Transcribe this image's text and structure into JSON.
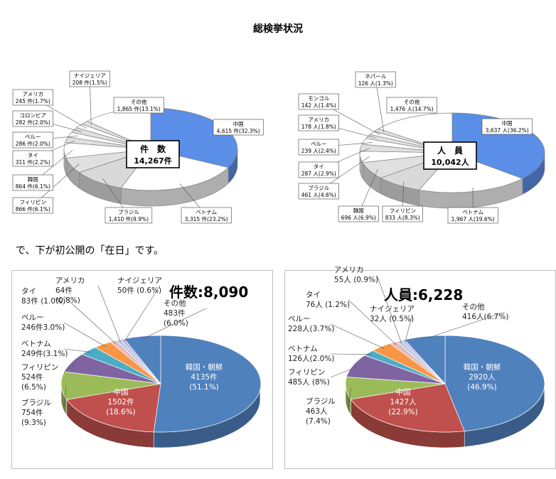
{
  "page": {
    "title": "総検挙状況",
    "caption": "で、下が初公開の「在日」です。"
  },
  "chart_data": [
    {
      "type": "pie",
      "title": "件　数",
      "total": "14,267件",
      "colors": [
        "#5b8ee6",
        "#ffffff",
        "#d9d9d9",
        "#e0e0e0",
        "#ffffff",
        "#e0e0e0",
        "#ffffff",
        "#e0e0e0",
        "#ffffff",
        "#e0e0e0",
        "#ffffff",
        "#d0d0d0"
      ],
      "slices": [
        {
          "name": "中国",
          "value": 4615,
          "label": "4,615 件(32.3%)"
        },
        {
          "name": "ベトナム",
          "value": 3315,
          "label": "3,315 件(23.2%)"
        },
        {
          "name": "ブラジル",
          "value": 1410,
          "label": "1,410 件(9.9%)"
        },
        {
          "name": "フィリピン",
          "value": 866,
          "label": "866 件(6.1%)"
        },
        {
          "name": "韓国",
          "value": 864,
          "label": "864 件(6.1%)"
        },
        {
          "name": "タイ",
          "value": 311,
          "label": "311 件(2.2%)"
        },
        {
          "name": "ペルー",
          "value": 286,
          "label": "286 件(2.0%)"
        },
        {
          "name": "コロンビア",
          "value": 282,
          "label": "282 件(2.0%)"
        },
        {
          "name": "アメリカ",
          "value": 245,
          "label": "245 件(1.7%)"
        },
        {
          "name": "ナイジェリア",
          "value": 208,
          "label": "208 件(1.5%)"
        },
        {
          "name": "その他",
          "value": 1865,
          "label": "1,865 件(13.1%)"
        }
      ]
    },
    {
      "type": "pie",
      "title": "人　員",
      "total": "10,042人",
      "colors": [
        "#5b8ee6",
        "#ffffff",
        "#d9d9d9",
        "#e0e0e0",
        "#ffffff",
        "#e0e0e0",
        "#ffffff",
        "#e0e0e0",
        "#ffffff",
        "#e0e0e0",
        "#ffffff",
        "#d0d0d0"
      ],
      "slices": [
        {
          "name": "中国",
          "value": 3637,
          "label": "3,637 人(36.2%)"
        },
        {
          "name": "ベトナム",
          "value": 1967,
          "label": "1,967 人(19.6%)"
        },
        {
          "name": "フィリピン",
          "value": 833,
          "label": "833 人(8.3%)"
        },
        {
          "name": "韓国",
          "value": 696,
          "label": "696 人(6.9%)"
        },
        {
          "name": "ブラジル",
          "value": 461,
          "label": "461 人(4.6%)"
        },
        {
          "name": "タイ",
          "value": 287,
          "label": "287 人(2.9%)"
        },
        {
          "name": "ペルー",
          "value": 239,
          "label": "239 人(2.4%)"
        },
        {
          "name": "アメリカ",
          "value": 178,
          "label": "178 人(1.8%)"
        },
        {
          "name": "モンゴル",
          "value": 142,
          "label": "142 人(1.4%)"
        },
        {
          "name": "ネパール",
          "value": 126,
          "label": "126 人(1.3%)"
        },
        {
          "name": "その他",
          "value": 1476,
          "label": "1,476 人(14.7%)"
        }
      ]
    },
    {
      "type": "pie",
      "title": "件数",
      "total": "8,090",
      "colors": [
        "#4f81bd",
        "#c0504d",
        "#9bbb59",
        "#8064a2",
        "#4bacc6",
        "#f79646",
        "#e6b9b8",
        "#b9cde5",
        "#c3b2d9"
      ],
      "slices": [
        {
          "name": "韓国・朝鮮",
          "value": 4135,
          "label": "4135件",
          "pct": "(51.1%)"
        },
        {
          "name": "中国",
          "value": 1502,
          "label": "1502件",
          "pct": "(18.6%)"
        },
        {
          "name": "ブラジル",
          "value": 754,
          "label": "754件",
          "pct": "(9.3%)"
        },
        {
          "name": "フィリピン",
          "value": 524,
          "label": "524件",
          "pct": "(6.5%)"
        },
        {
          "name": "ベトナム",
          "value": 249,
          "label": "249件(3.1%)"
        },
        {
          "name": "ペルー",
          "value": 246,
          "label": "246件3.0%)"
        },
        {
          "name": "タイ",
          "value": 83,
          "label": "83件 (1.0%)"
        },
        {
          "name": "アメリカ",
          "value": 64,
          "label": "64件",
          "pct": "(0.8%)"
        },
        {
          "name": "ナイジェリア",
          "value": 50,
          "label": "50件 (0.6%)"
        },
        {
          "name": "その他",
          "value": 483,
          "label": "483件",
          "pct": "(6.0%)"
        }
      ]
    },
    {
      "type": "pie",
      "title": "人員",
      "total": "6,228",
      "colors": [
        "#4f81bd",
        "#c0504d",
        "#9bbb59",
        "#8064a2",
        "#4bacc6",
        "#f79646",
        "#e6b9b8",
        "#b9cde5",
        "#c3b2d9"
      ],
      "slices": [
        {
          "name": "韓国・朝鮮",
          "value": 2920,
          "label": "2920人",
          "pct": "(46.9%)"
        },
        {
          "name": "中国",
          "value": 1427,
          "label": "1427人",
          "pct": "(22.9%)"
        },
        {
          "name": "ブラジル",
          "value": 463,
          "label": "463人",
          "pct": "(7.4%)"
        },
        {
          "name": "フィリピン",
          "value": 485,
          "label": "485人 (8%)"
        },
        {
          "name": "ベトナム",
          "value": 126,
          "label": "126人(2.0%)"
        },
        {
          "name": "ペルー",
          "value": 228,
          "label": "228人(3.7%)"
        },
        {
          "name": "タイ",
          "value": 76,
          "label": "76人 (1.2%)"
        },
        {
          "name": "アメリカ",
          "value": 55,
          "label": "55人 (0.9%)"
        },
        {
          "name": "ナイジェリア",
          "value": 32,
          "label": "32人 (0.5%)"
        },
        {
          "name": "その他",
          "value": 416,
          "label": "416人(6.7%)"
        }
      ]
    }
  ]
}
